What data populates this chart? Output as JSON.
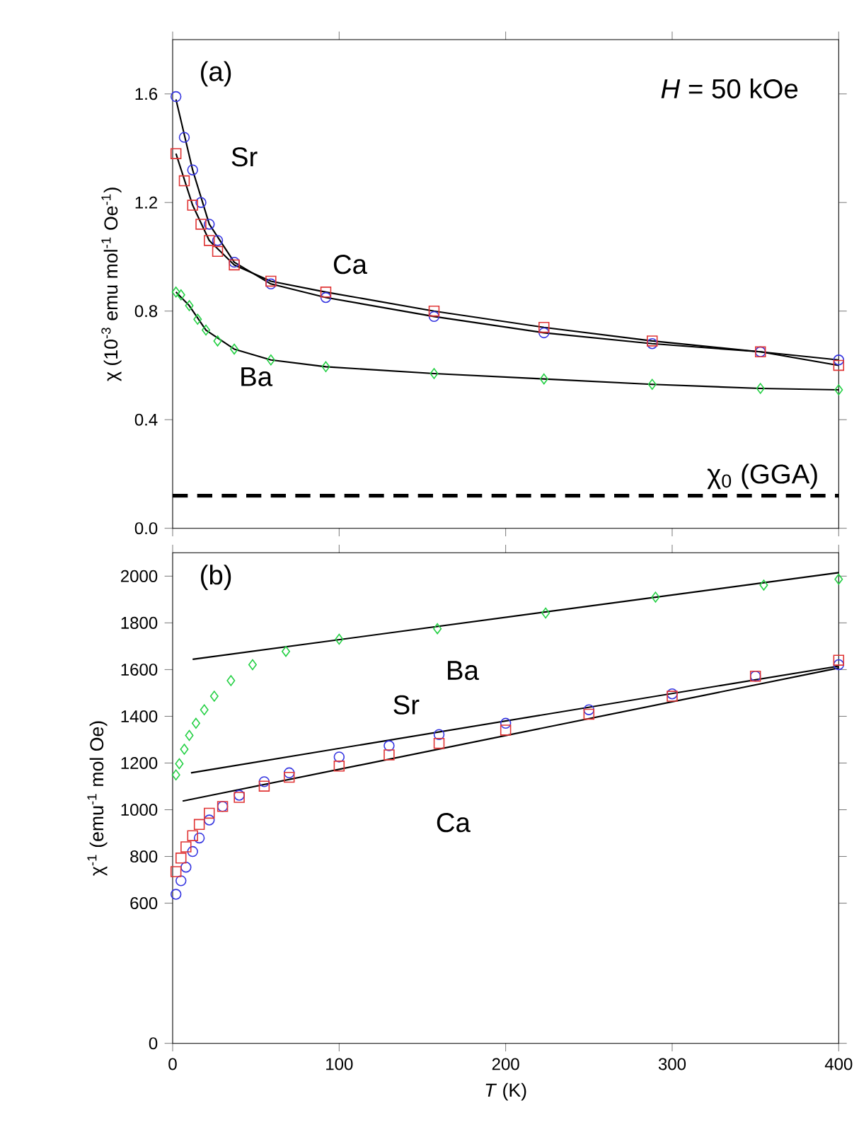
{
  "chart_data": [
    {
      "type": "scatter",
      "ylabel": "χ (10$^{-3}$ emu mol$^{-1}$ Oe$^{-1}$)",
      "xlim": [
        0,
        400
      ],
      "xticks": [
        0,
        100,
        200,
        300,
        400
      ],
      "ylim": [
        0,
        1.8
      ],
      "yticks": [
        {
          "value": 0,
          "label": "0.0"
        },
        0.4,
        0.8,
        1.2,
        1.6
      ],
      "tick_labels": "y",
      "annotations": [
        "(a)",
        "*H* = 50 kOe"
      ],
      "ref_lines": [
        {
          "axis": "y",
          "value": 0.12,
          "label": "χ$_{0}$ (GGA)",
          "color": "#000000",
          "line_style": "dashed"
        }
      ],
      "series": [
        {
          "name": "Sr",
          "color": "#3535e0",
          "marker": "circle",
          "x": [
            2,
            7,
            12,
            17,
            22,
            27,
            37,
            59,
            92,
            157,
            223,
            288,
            353,
            400
          ],
          "values": [
            1.59,
            1.44,
            1.32,
            1.2,
            1.12,
            1.06,
            0.98,
            0.9,
            0.85,
            0.78,
            0.72,
            0.68,
            0.65,
            0.62
          ]
        },
        {
          "name": "Ca",
          "color": "#e03535",
          "marker": "square",
          "x": [
            2,
            7,
            12,
            17,
            22,
            27,
            37,
            59,
            92,
            157,
            223,
            288,
            353,
            400
          ],
          "values": [
            1.38,
            1.28,
            1.19,
            1.12,
            1.06,
            1.02,
            0.97,
            0.91,
            0.87,
            0.8,
            0.74,
            0.69,
            0.65,
            0.6
          ]
        },
        {
          "name": "Ba",
          "color": "#25d045",
          "marker": "diamond",
          "x": [
            2,
            5,
            10,
            15,
            20,
            27,
            37,
            59,
            92,
            157,
            223,
            288,
            353,
            400
          ],
          "values": [
            0.87,
            0.86,
            0.82,
            0.77,
            0.73,
            0.69,
            0.66,
            0.62,
            0.595,
            0.57,
            0.55,
            0.53,
            0.515,
            0.51
          ]
        },
        {
          "type": "line",
          "color": "#000000",
          "x": [
            2,
            12,
            22,
            37,
            59,
            92,
            157,
            223,
            288,
            353,
            400
          ],
          "values": [
            1.58,
            1.32,
            1.12,
            0.98,
            0.9,
            0.85,
            0.78,
            0.72,
            0.68,
            0.65,
            0.62
          ]
        },
        {
          "type": "line",
          "color": "#000000",
          "x": [
            2,
            12,
            22,
            37,
            59,
            92,
            157,
            223,
            288,
            353,
            400
          ],
          "values": [
            1.38,
            1.19,
            1.06,
            0.97,
            0.91,
            0.87,
            0.8,
            0.74,
            0.69,
            0.65,
            0.6
          ]
        },
        {
          "type": "line",
          "color": "#000000",
          "x": [
            2,
            10,
            20,
            37,
            59,
            92,
            157,
            223,
            288,
            353,
            400
          ],
          "values": [
            0.87,
            0.82,
            0.73,
            0.66,
            0.62,
            0.595,
            0.57,
            0.55,
            0.53,
            0.515,
            0.51
          ]
        }
      ]
    },
    {
      "type": "scatter",
      "xlabel": "*T* (K)",
      "ylabel": "χ$^{-1}$ (emu$^{-1}$ mol Oe)",
      "xlim": [
        0,
        400
      ],
      "xticks": [
        0,
        100,
        200,
        300,
        400
      ],
      "ylim": [
        0,
        2100
      ],
      "yticks": [
        0,
        600,
        800,
        1000,
        1200,
        1400,
        1600,
        1800,
        2000
      ],
      "annotations": [
        "(b)"
      ],
      "series": [
        {
          "name": "Ba",
          "color": "#25d045",
          "marker": "diamond",
          "x": [
            2,
            4,
            7,
            10,
            14,
            19,
            25,
            35,
            48,
            68,
            100,
            159,
            224,
            290,
            355,
            400
          ],
          "values": [
            1149,
            1197,
            1259,
            1318,
            1370,
            1428,
            1486,
            1553,
            1621,
            1678,
            1730,
            1775,
            1842,
            1910,
            1962,
            1987
          ]
        },
        {
          "name": "Sr",
          "color": "#3535e0",
          "marker": "circle",
          "x": [
            2,
            5,
            8,
            12,
            16,
            22,
            30,
            40,
            55,
            70,
            100,
            130,
            160,
            200,
            250,
            300,
            350,
            400
          ],
          "values": [
            638,
            696,
            754,
            821,
            879,
            956,
            1014,
            1062,
            1120,
            1158,
            1226,
            1274,
            1322,
            1370,
            1428,
            1496,
            1572,
            1621
          ]
        },
        {
          "name": "Ca",
          "color": "#e03535",
          "marker": "square",
          "x": [
            2,
            5,
            8,
            12,
            16,
            22,
            30,
            40,
            55,
            70,
            100,
            130,
            160,
            200,
            250,
            300,
            350,
            400
          ],
          "values": [
            735,
            793,
            841,
            889,
            937,
            985,
            1014,
            1053,
            1101,
            1139,
            1187,
            1235,
            1284,
            1341,
            1409,
            1486,
            1572,
            1640
          ]
        },
        {
          "type": "line",
          "color": "#000000",
          "x": [
            12,
            400
          ],
          "values": [
            1644,
            2015
          ]
        },
        {
          "type": "line",
          "color": "#000000",
          "x": [
            11,
            400
          ],
          "values": [
            1158,
            1615
          ]
        },
        {
          "type": "line",
          "color": "#000000",
          "x": [
            6,
            400
          ],
          "values": [
            1037,
            1607
          ]
        }
      ]
    }
  ]
}
